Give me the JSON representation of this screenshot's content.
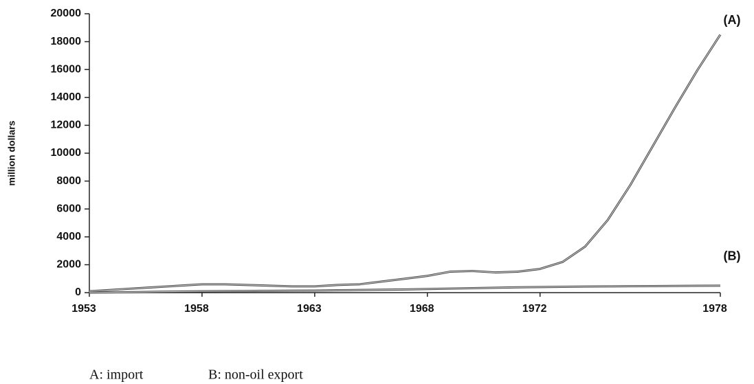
{
  "chart_data": {
    "type": "line",
    "y_label": "million dollars",
    "categories": [
      "1953",
      null,
      null,
      null,
      null,
      "1958",
      null,
      null,
      null,
      null,
      "1963",
      null,
      null,
      null,
      null,
      "1968",
      null,
      null,
      null,
      null,
      "1972",
      null,
      null,
      null,
      null,
      null,
      null,
      null,
      "1978"
    ],
    "series": [
      {
        "name": "(A)",
        "color": "#444444",
        "values": [
          100,
          200,
          300,
          400,
          500,
          600,
          600,
          550,
          500,
          450,
          450,
          550,
          600,
          800,
          1000,
          1200,
          1500,
          1550,
          1450,
          1500,
          1700,
          2200,
          3300,
          5200,
          7700,
          10500,
          13300,
          16000,
          18500
        ]
      },
      {
        "name": "(B)",
        "color": "#444444",
        "values": [
          0,
          20,
          40,
          60,
          80,
          100,
          110,
          120,
          130,
          140,
          150,
          170,
          190,
          210,
          230,
          260,
          290,
          320,
          350,
          380,
          400,
          420,
          440,
          450,
          460,
          470,
          480,
          490,
          500
        ]
      }
    ],
    "ylim": [
      0,
      20000
    ],
    "yticks": [
      0,
      2000,
      4000,
      6000,
      8000,
      10000,
      12000,
      14000,
      16000,
      18000,
      20000
    ],
    "footnotes": [
      "A: import",
      "B: non-oil export"
    ]
  }
}
